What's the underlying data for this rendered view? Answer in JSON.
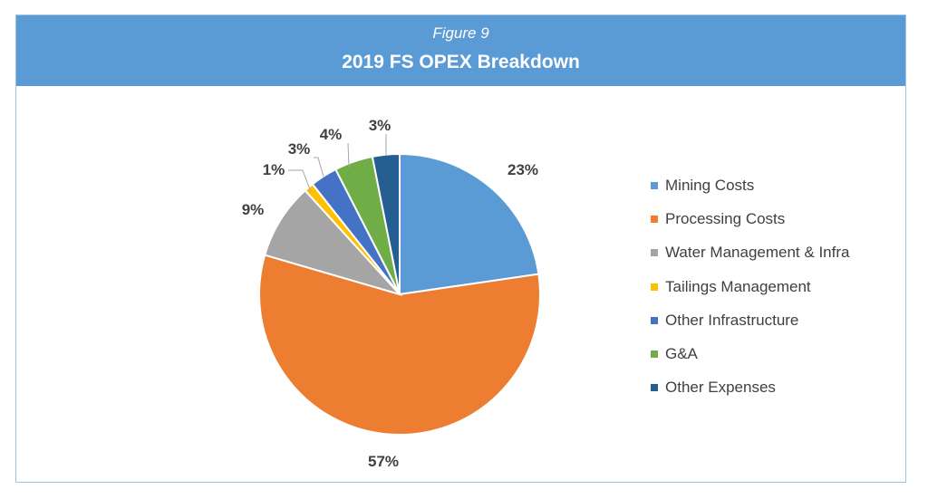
{
  "header": {
    "figure_label": "Figure 9",
    "title": "2019 FS OPEX Breakdown"
  },
  "chart_data": {
    "type": "pie",
    "title": "2019 FS OPEX Breakdown",
    "categories": [
      "Mining Costs",
      "Processing Costs",
      "Water Management & Infra",
      "Tailings Management",
      "Other Infrastructure",
      "G&A",
      "Other Expenses"
    ],
    "values": [
      22.6,
      56.6,
      8.7,
      1.1,
      3.1,
      4.4,
      3.1
    ],
    "labels": [
      "23%",
      "57%",
      "9%",
      "1%",
      "3%",
      "4%",
      "3%"
    ],
    "colors": [
      "#5b9bd5",
      "#ed7d31",
      "#a5a5a5",
      "#ffc000",
      "#4472c4",
      "#70ad47",
      "#255e91"
    ],
    "legend_position": "right"
  }
}
